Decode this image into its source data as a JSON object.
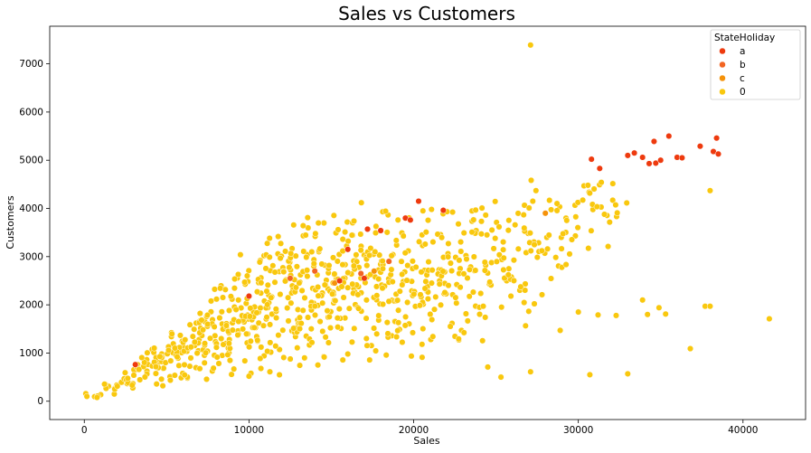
{
  "chart_data": {
    "type": "scatter",
    "title": "Sales vs Customers",
    "xlabel": "Sales",
    "ylabel": "Customers",
    "xlim": [
      -2100,
      43800
    ],
    "ylim": [
      -380,
      7780
    ],
    "xticks": [
      0,
      10000,
      20000,
      30000,
      40000
    ],
    "yticks": [
      0,
      1000,
      2000,
      3000,
      4000,
      5000,
      6000,
      7000
    ],
    "grid": false,
    "legend": {
      "title": "StateHoliday",
      "position": "top-right"
    },
    "series": [
      {
        "name": "a",
        "color": "#ee3a0e",
        "points": [
          [
            3100,
            760
          ],
          [
            10000,
            2180
          ],
          [
            16000,
            3150
          ],
          [
            17200,
            3570
          ],
          [
            18000,
            3540
          ],
          [
            19500,
            3800
          ],
          [
            19800,
            3760
          ],
          [
            20300,
            4150
          ],
          [
            21800,
            3960
          ],
          [
            15500,
            2500
          ],
          [
            17000,
            2550
          ],
          [
            30800,
            5020
          ],
          [
            31300,
            4830
          ],
          [
            33000,
            5100
          ],
          [
            33400,
            5150
          ],
          [
            33900,
            5060
          ],
          [
            34300,
            4930
          ],
          [
            34600,
            5390
          ],
          [
            34700,
            4940
          ],
          [
            35000,
            5000
          ],
          [
            35500,
            5500
          ],
          [
            36000,
            5060
          ],
          [
            36300,
            5050
          ],
          [
            37400,
            5290
          ],
          [
            38200,
            5180
          ],
          [
            38400,
            5460
          ],
          [
            38500,
            5130
          ]
        ]
      },
      {
        "name": "b",
        "color": "#f26522",
        "points": [
          [
            16800,
            2650
          ],
          [
            14000,
            2700
          ],
          [
            18500,
            2900
          ],
          [
            12500,
            2550
          ]
        ]
      },
      {
        "name": "c",
        "color": "#f5920a",
        "points": [
          [
            15200,
            2450
          ],
          [
            17600,
            2700
          ],
          [
            28000,
            3900
          ]
        ]
      },
      {
        "name": "0",
        "color": "#f9c80e",
        "points": [
          [
            27100,
            7390
          ],
          [
            41600,
            1710
          ],
          [
            37700,
            1970
          ],
          [
            38000,
            1970
          ],
          [
            33000,
            570
          ],
          [
            30700,
            550
          ],
          [
            27100,
            610
          ],
          [
            38000,
            4370
          ],
          [
            36800,
            1090
          ],
          [
            34900,
            1940
          ],
          [
            34200,
            1800
          ],
          [
            35300,
            1810
          ],
          [
            33900,
            2100
          ],
          [
            32300,
            1780
          ],
          [
            30000,
            1850
          ],
          [
            31200,
            1790
          ],
          [
            28900,
            1470
          ],
          [
            25300,
            500
          ],
          [
            24500,
            710
          ]
        ],
        "ranges": [
          {
            "x": [
              -100,
              1000
            ],
            "y": [
              0,
              200
            ]
          },
          {
            "x": [
              1000,
              2000
            ],
            "y": [
              80,
              500
            ]
          },
          {
            "x": [
              2000,
              3000
            ],
            "y": [
              120,
              800
            ]
          },
          {
            "x": [
              3000,
              4000
            ],
            "y": [
              180,
              1100
            ]
          },
          {
            "x": [
              4000,
              5000
            ],
            "y": [
              230,
              1350
            ]
          },
          {
            "x": [
              5000,
              6000
            ],
            "y": [
              270,
              1650
            ]
          },
          {
            "x": [
              6000,
              7000
            ],
            "y": [
              300,
              2000
            ]
          },
          {
            "x": [
              7000,
              8000
            ],
            "y": [
              330,
              2400
            ]
          },
          {
            "x": [
              8000,
              9000
            ],
            "y": [
              360,
              2750
            ]
          },
          {
            "x": [
              9000,
              10000
            ],
            "y": [
              380,
              3100
            ]
          },
          {
            "x": [
              10000,
              11000
            ],
            "y": [
              400,
              3450
            ]
          },
          {
            "x": [
              11000,
              12000
            ],
            "y": [
              450,
              3750
            ]
          },
          {
            "x": [
              12000,
              13000
            ],
            "y": [
              480,
              3950
            ]
          },
          {
            "x": [
              13000,
              14000
            ],
            "y": [
              520,
              4150
            ]
          },
          {
            "x": [
              14000,
              15000
            ],
            "y": [
              560,
              4300
            ]
          },
          {
            "x": [
              15000,
              16000
            ],
            "y": [
              580,
              4250
            ]
          },
          {
            "x": [
              16000,
              17000
            ],
            "y": [
              620,
              4300
            ]
          },
          {
            "x": [
              17000,
              18000
            ],
            "y": [
              650,
              4350
            ]
          },
          {
            "x": [
              18000,
              19000
            ],
            "y": [
              700,
              4300
            ]
          },
          {
            "x": [
              19000,
              20000
            ],
            "y": [
              750,
              4250
            ]
          },
          {
            "x": [
              20000,
              21000
            ],
            "y": [
              800,
              4200
            ]
          },
          {
            "x": [
              21000,
              22000
            ],
            "y": [
              850,
              4250
            ]
          },
          {
            "x": [
              22000,
              23000
            ],
            "y": [
              950,
              4350
            ]
          },
          {
            "x": [
              23000,
              24000
            ],
            "y": [
              1050,
              4350
            ]
          },
          {
            "x": [
              24000,
              25000
            ],
            "y": [
              1150,
              4400
            ]
          },
          {
            "x": [
              25000,
              26000
            ],
            "y": [
              1300,
              4450
            ]
          },
          {
            "x": [
              26000,
              27000
            ],
            "y": [
              1450,
              4550
            ]
          },
          {
            "x": [
              27000,
              28000
            ],
            "y": [
              1650,
              4650
            ]
          },
          {
            "x": [
              28000,
              29000
            ],
            "y": [
              1900,
              4750
            ]
          },
          {
            "x": [
              29000,
              30000
            ],
            "y": [
              2200,
              4800
            ]
          },
          {
            "x": [
              30000,
              31000
            ],
            "y": [
              2600,
              4900
            ]
          },
          {
            "x": [
              31000,
              32000
            ],
            "y": [
              3000,
              4950
            ]
          },
          {
            "x": [
              32000,
              33000
            ],
            "y": [
              3500,
              5000
            ]
          }
        ],
        "density": [
          6,
          10,
          14,
          18,
          22,
          26,
          30,
          32,
          34,
          36,
          38,
          40,
          40,
          40,
          40,
          38,
          36,
          36,
          34,
          32,
          30,
          28,
          26,
          24,
          22,
          20,
          18,
          16,
          14,
          12,
          10,
          8,
          6
        ]
      }
    ]
  }
}
